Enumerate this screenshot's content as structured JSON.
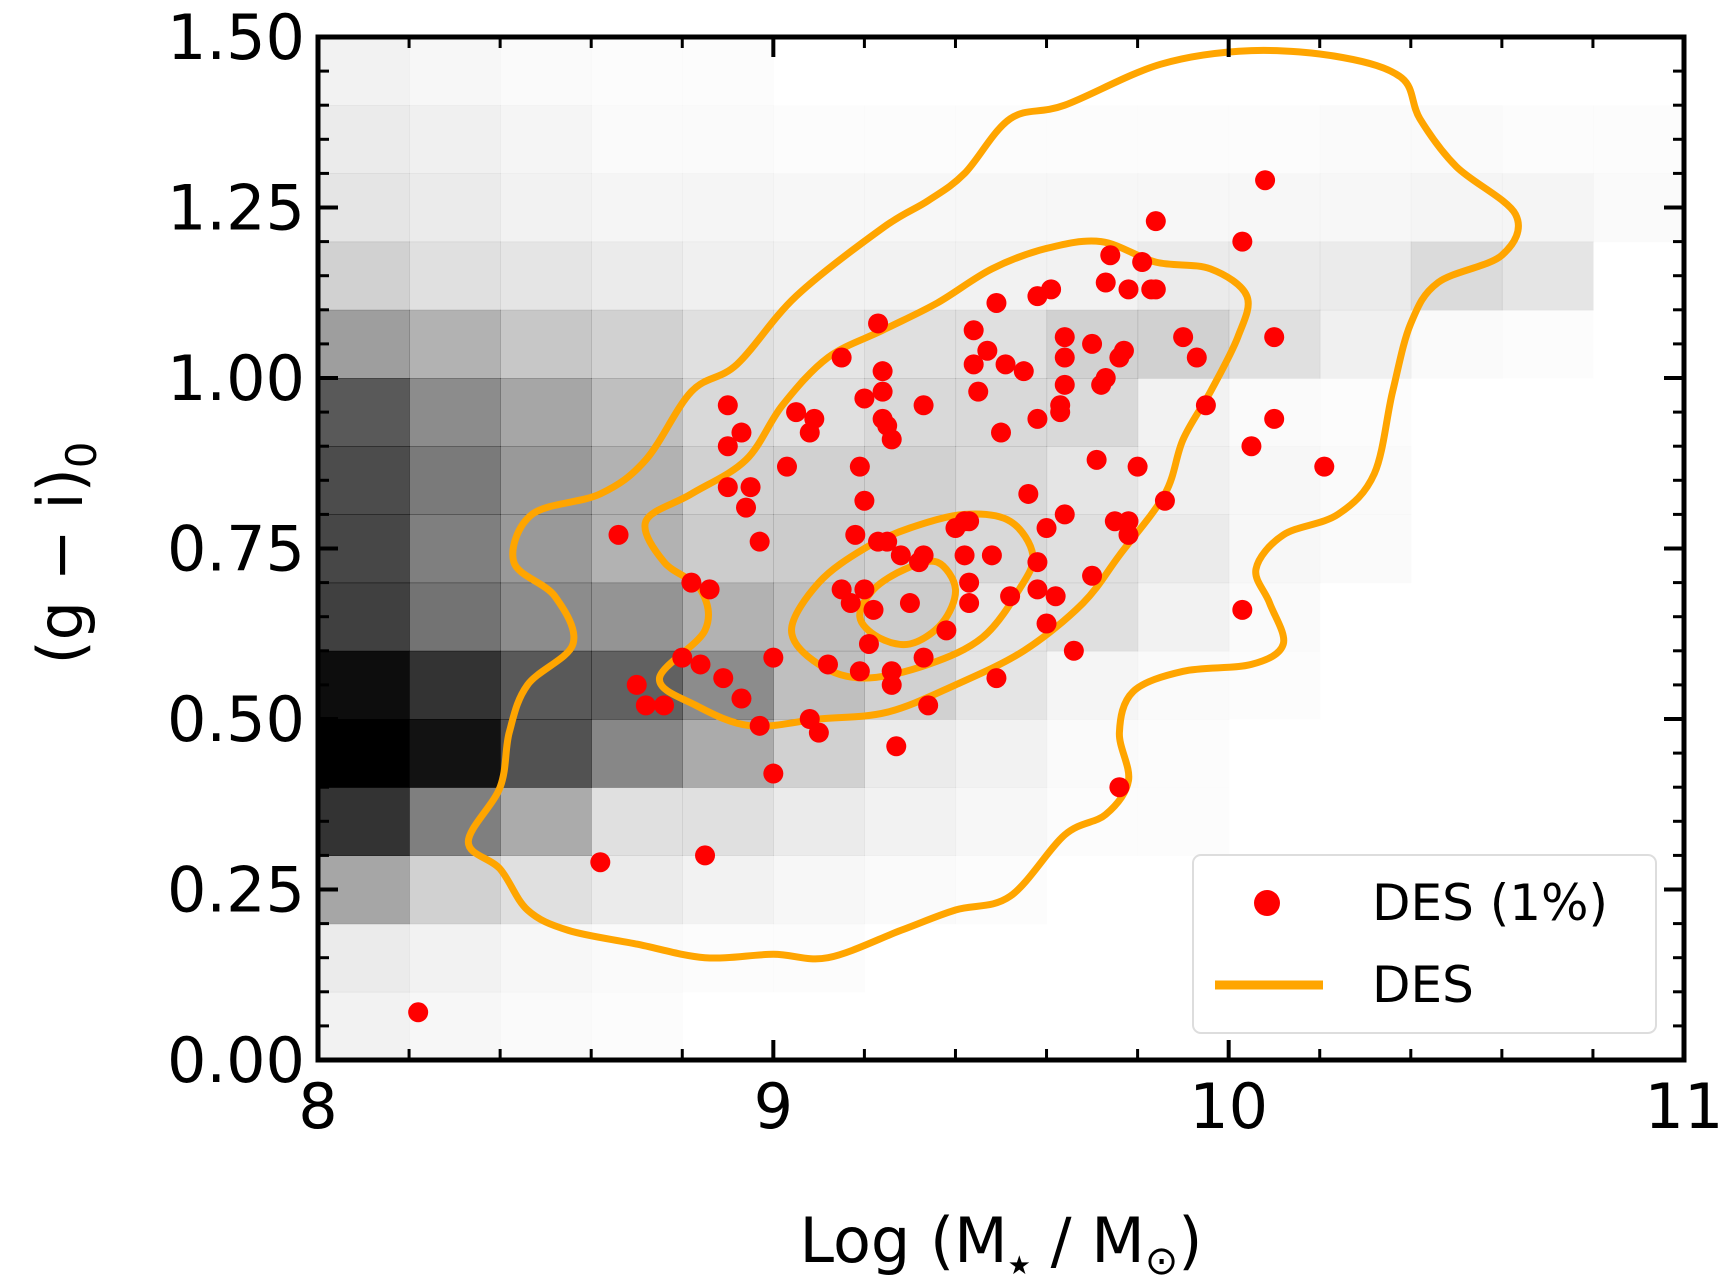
{
  "chart_data": {
    "type": "scatter",
    "xlim": [
      8,
      11
    ],
    "ylim": [
      0,
      1.5
    ],
    "x_ticks": [
      {
        "value": 8,
        "label": "8"
      },
      {
        "value": 9,
        "label": "9"
      },
      {
        "value": 10,
        "label": "10"
      },
      {
        "value": 11,
        "label": "11"
      }
    ],
    "y_ticks": [
      {
        "value": 0,
        "label": "0.00"
      },
      {
        "value": 0.25,
        "label": "0.25"
      },
      {
        "value": 0.5,
        "label": "0.50"
      },
      {
        "value": 0.75,
        "label": "0.75"
      },
      {
        "value": 1.0,
        "label": "1.00"
      },
      {
        "value": 1.25,
        "label": "1.25"
      },
      {
        "value": 1.5,
        "label": "1.50"
      }
    ],
    "xlabel_main": "Log (M",
    "xlabel_sub1": "★",
    "xlabel_mid": " / M",
    "xlabel_sub2": "⊙",
    "xlabel_end": ")",
    "ylabel_main": "(g − i)",
    "ylabel_sub": "0",
    "legend": {
      "position": "lower-right",
      "scatter_label": "DES (1%)",
      "line_label": "DES"
    },
    "colors": {
      "scatter": "#ff0000",
      "contour": "#ffa500",
      "heatmap_base": "#000000"
    },
    "heatmap": {
      "x_edges": [
        8.0,
        8.2,
        8.4,
        8.6,
        8.8,
        9.0,
        9.2,
        9.4,
        9.6,
        9.8,
        10.0,
        10.2,
        10.4,
        10.6,
        10.8,
        11.0
      ],
      "y_edges": [
        0.0,
        0.1,
        0.2,
        0.3,
        0.4,
        0.5,
        0.6,
        0.7,
        0.8,
        0.9,
        1.0,
        1.1,
        1.2,
        1.3,
        1.4,
        1.5
      ],
      "density": [
        [
          0.05,
          0.03,
          0.02,
          0.01,
          0.0,
          0.0,
          0.0,
          0.0,
          0.0,
          0.0,
          0.0,
          0.0,
          0.0,
          0.0,
          0.0
        ],
        [
          0.08,
          0.05,
          0.03,
          0.02,
          0.01,
          0.01,
          0.0,
          0.0,
          0.0,
          0.0,
          0.0,
          0.0,
          0.0,
          0.0,
          0.0
        ],
        [
          0.35,
          0.18,
          0.12,
          0.08,
          0.05,
          0.03,
          0.02,
          0.01,
          0.0,
          0.0,
          0.0,
          0.0,
          0.0,
          0.0,
          0.0
        ],
        [
          0.8,
          0.5,
          0.33,
          0.12,
          0.12,
          0.08,
          0.05,
          0.03,
          0.01,
          0.01,
          0.0,
          0.0,
          0.0,
          0.0,
          0.0
        ],
        [
          1.0,
          0.93,
          0.68,
          0.47,
          0.33,
          0.18,
          0.08,
          0.05,
          0.02,
          0.01,
          0.0,
          0.0,
          0.0,
          0.0,
          0.0
        ],
        [
          0.95,
          0.8,
          0.65,
          0.62,
          0.45,
          0.25,
          0.18,
          0.1,
          0.04,
          0.02,
          0.01,
          0.0,
          0.0,
          0.0,
          0.0
        ],
        [
          0.75,
          0.55,
          0.45,
          0.42,
          0.3,
          0.25,
          0.2,
          0.1,
          0.12,
          0.05,
          0.02,
          0.0,
          0.0,
          0.0,
          0.0
        ],
        [
          0.72,
          0.5,
          0.4,
          0.3,
          0.2,
          0.2,
          0.18,
          0.15,
          0.12,
          0.08,
          0.03,
          0.02,
          0.0,
          0.0,
          0.0
        ],
        [
          0.7,
          0.52,
          0.4,
          0.3,
          0.18,
          0.18,
          0.18,
          0.15,
          0.1,
          0.06,
          0.03,
          0.02,
          0.0,
          0.0,
          0.0
        ],
        [
          0.65,
          0.45,
          0.35,
          0.25,
          0.15,
          0.12,
          0.15,
          0.15,
          0.15,
          0.05,
          0.02,
          0.01,
          0.0,
          0.0,
          0.0
        ],
        [
          0.38,
          0.3,
          0.22,
          0.18,
          0.12,
          0.1,
          0.12,
          0.12,
          0.18,
          0.18,
          0.12,
          0.06,
          0.02,
          0.01,
          0.0
        ],
        [
          0.18,
          0.12,
          0.1,
          0.08,
          0.06,
          0.05,
          0.05,
          0.05,
          0.05,
          0.08,
          0.08,
          0.08,
          0.14,
          0.1,
          0.0
        ],
        [
          0.1,
          0.08,
          0.05,
          0.04,
          0.04,
          0.03,
          0.03,
          0.03,
          0.03,
          0.03,
          0.03,
          0.03,
          0.04,
          0.04,
          0.02
        ],
        [
          0.08,
          0.06,
          0.04,
          0.02,
          0.02,
          0.01,
          0.01,
          0.01,
          0.01,
          0.01,
          0.01,
          0.02,
          0.02,
          0.01,
          0.01
        ],
        [
          0.05,
          0.03,
          0.02,
          0.01,
          0.01,
          0.0,
          0.0,
          0.0,
          0.0,
          0.0,
          0.0,
          0.0,
          0.0,
          0.0,
          0.0
        ]
      ]
    },
    "contours": [
      [
        [
          8.4,
          0.28
        ],
        [
          8.46,
          0.22
        ],
        [
          8.55,
          0.19
        ],
        [
          8.7,
          0.17
        ],
        [
          8.85,
          0.15
        ],
        [
          9.0,
          0.155
        ],
        [
          9.12,
          0.15
        ],
        [
          9.28,
          0.19
        ],
        [
          9.4,
          0.22
        ],
        [
          9.52,
          0.24
        ],
        [
          9.64,
          0.33
        ],
        [
          9.73,
          0.36
        ],
        [
          9.78,
          0.41
        ],
        [
          9.76,
          0.48
        ],
        [
          9.79,
          0.54
        ],
        [
          9.9,
          0.57
        ],
        [
          10.05,
          0.58
        ],
        [
          10.12,
          0.61
        ],
        [
          10.09,
          0.67
        ],
        [
          10.06,
          0.72
        ],
        [
          10.12,
          0.77
        ],
        [
          10.24,
          0.8
        ],
        [
          10.32,
          0.86
        ],
        [
          10.36,
          0.98
        ],
        [
          10.4,
          1.08
        ],
        [
          10.46,
          1.14
        ],
        [
          10.6,
          1.18
        ],
        [
          10.63,
          1.24
        ],
        [
          10.5,
          1.31
        ],
        [
          10.42,
          1.38
        ],
        [
          10.38,
          1.44
        ],
        [
          10.25,
          1.47
        ],
        [
          10.05,
          1.48
        ],
        [
          9.85,
          1.46
        ],
        [
          9.64,
          1.4
        ],
        [
          9.52,
          1.38
        ],
        [
          9.42,
          1.3
        ],
        [
          9.34,
          1.26
        ],
        [
          9.24,
          1.22
        ],
        [
          9.05,
          1.12
        ],
        [
          8.92,
          1.02
        ],
        [
          8.82,
          0.98
        ],
        [
          8.72,
          0.88
        ],
        [
          8.62,
          0.83
        ],
        [
          8.47,
          0.8
        ],
        [
          8.43,
          0.73
        ],
        [
          8.52,
          0.68
        ],
        [
          8.56,
          0.61
        ],
        [
          8.46,
          0.55
        ],
        [
          8.42,
          0.48
        ],
        [
          8.4,
          0.4
        ],
        [
          8.33,
          0.32
        ],
        [
          8.4,
          0.28
        ]
      ],
      [
        [
          8.75,
          0.56
        ],
        [
          8.83,
          0.52
        ],
        [
          8.95,
          0.49
        ],
        [
          9.1,
          0.5
        ],
        [
          9.25,
          0.51
        ],
        [
          9.4,
          0.55
        ],
        [
          9.55,
          0.6
        ],
        [
          9.68,
          0.67
        ],
        [
          9.76,
          0.74
        ],
        [
          9.86,
          0.83
        ],
        [
          9.9,
          0.91
        ],
        [
          9.96,
          0.98
        ],
        [
          10.02,
          1.06
        ],
        [
          10.04,
          1.12
        ],
        [
          9.96,
          1.16
        ],
        [
          9.84,
          1.17
        ],
        [
          9.72,
          1.2
        ],
        [
          9.6,
          1.19
        ],
        [
          9.48,
          1.16
        ],
        [
          9.36,
          1.11
        ],
        [
          9.24,
          1.07
        ],
        [
          9.12,
          1.03
        ],
        [
          9.02,
          0.96
        ],
        [
          8.94,
          0.88
        ],
        [
          8.82,
          0.83
        ],
        [
          8.72,
          0.79
        ],
        [
          8.76,
          0.73
        ],
        [
          8.84,
          0.69
        ],
        [
          8.85,
          0.63
        ],
        [
          8.75,
          0.56
        ]
      ],
      [
        [
          9.04,
          0.63
        ],
        [
          9.1,
          0.58
        ],
        [
          9.2,
          0.56
        ],
        [
          9.34,
          0.58
        ],
        [
          9.46,
          0.62
        ],
        [
          9.54,
          0.69
        ],
        [
          9.57,
          0.74
        ],
        [
          9.52,
          0.79
        ],
        [
          9.42,
          0.8
        ],
        [
          9.3,
          0.78
        ],
        [
          9.2,
          0.75
        ],
        [
          9.1,
          0.7
        ],
        [
          9.04,
          0.63
        ]
      ],
      [
        [
          9.19,
          0.65
        ],
        [
          9.23,
          0.62
        ],
        [
          9.3,
          0.61
        ],
        [
          9.37,
          0.64
        ],
        [
          9.4,
          0.69
        ],
        [
          9.36,
          0.73
        ],
        [
          9.29,
          0.72
        ],
        [
          9.22,
          0.69
        ],
        [
          9.19,
          0.65
        ]
      ]
    ],
    "points": [
      [
        8.22,
        0.07
      ],
      [
        8.62,
        0.29
      ],
      [
        8.85,
        0.3
      ],
      [
        8.66,
        0.77
      ],
      [
        8.7,
        0.55
      ],
      [
        8.72,
        0.52
      ],
      [
        8.76,
        0.52
      ],
      [
        8.8,
        0.59
      ],
      [
        8.82,
        0.7
      ],
      [
        8.84,
        0.58
      ],
      [
        8.86,
        0.69
      ],
      [
        8.89,
        0.56
      ],
      [
        8.9,
        0.84
      ],
      [
        8.9,
        0.9
      ],
      [
        8.93,
        0.92
      ],
      [
        8.9,
        0.96
      ],
      [
        8.93,
        0.53
      ],
      [
        8.94,
        0.81
      ],
      [
        8.95,
        0.84
      ],
      [
        8.97,
        0.76
      ],
      [
        8.97,
        0.49
      ],
      [
        9.0,
        0.42
      ],
      [
        9.0,
        0.59
      ],
      [
        9.03,
        0.87
      ],
      [
        9.05,
        0.95
      ],
      [
        9.08,
        0.92
      ],
      [
        9.09,
        0.94
      ],
      [
        9.08,
        0.5
      ],
      [
        9.1,
        0.48
      ],
      [
        9.12,
        0.58
      ],
      [
        9.15,
        1.03
      ],
      [
        9.15,
        0.69
      ],
      [
        9.17,
        0.67
      ],
      [
        9.18,
        0.77
      ],
      [
        9.19,
        0.87
      ],
      [
        9.19,
        0.57
      ],
      [
        9.2,
        0.97
      ],
      [
        9.2,
        0.82
      ],
      [
        9.2,
        0.69
      ],
      [
        9.21,
        0.61
      ],
      [
        9.22,
        0.66
      ],
      [
        9.23,
        1.08
      ],
      [
        9.24,
        1.01
      ],
      [
        9.24,
        0.98
      ],
      [
        9.24,
        0.94
      ],
      [
        9.25,
        0.93
      ],
      [
        9.26,
        0.91
      ],
      [
        9.25,
        0.76
      ],
      [
        9.26,
        0.57
      ],
      [
        9.26,
        0.55
      ],
      [
        9.27,
        0.46
      ],
      [
        9.23,
        0.76
      ],
      [
        9.28,
        0.74
      ],
      [
        9.3,
        0.67
      ],
      [
        9.32,
        0.73
      ],
      [
        9.33,
        0.74
      ],
      [
        9.33,
        0.59
      ],
      [
        9.33,
        0.96
      ],
      [
        9.34,
        0.52
      ],
      [
        9.38,
        0.63
      ],
      [
        9.4,
        0.78
      ],
      [
        9.42,
        0.79
      ],
      [
        9.42,
        0.74
      ],
      [
        9.43,
        0.79
      ],
      [
        9.43,
        0.7
      ],
      [
        9.43,
        0.67
      ],
      [
        9.44,
        1.07
      ],
      [
        9.44,
        1.02
      ],
      [
        9.45,
        0.98
      ],
      [
        9.47,
        1.04
      ],
      [
        9.48,
        0.74
      ],
      [
        9.49,
        1.11
      ],
      [
        9.5,
        0.92
      ],
      [
        9.49,
        0.56
      ],
      [
        9.51,
        1.02
      ],
      [
        9.52,
        0.68
      ],
      [
        9.55,
        1.01
      ],
      [
        9.56,
        0.83
      ],
      [
        9.58,
        0.94
      ],
      [
        9.58,
        0.73
      ],
      [
        9.58,
        0.69
      ],
      [
        9.58,
        1.12
      ],
      [
        9.6,
        0.78
      ],
      [
        9.6,
        0.64
      ],
      [
        9.61,
        1.13
      ],
      [
        9.62,
        0.68
      ],
      [
        9.63,
        0.96
      ],
      [
        9.63,
        0.95
      ],
      [
        9.64,
        1.03
      ],
      [
        9.64,
        0.99
      ],
      [
        9.64,
        0.8
      ],
      [
        9.64,
        1.06
      ],
      [
        9.66,
        0.6
      ],
      [
        9.7,
        1.05
      ],
      [
        9.7,
        0.71
      ],
      [
        9.71,
        0.88
      ],
      [
        9.72,
        0.99
      ],
      [
        9.73,
        1.0
      ],
      [
        9.73,
        1.14
      ],
      [
        9.74,
        1.18
      ],
      [
        9.75,
        0.79
      ],
      [
        9.76,
        1.03
      ],
      [
        9.77,
        1.04
      ],
      [
        9.78,
        0.79
      ],
      [
        9.78,
        1.13
      ],
      [
        9.8,
        0.87
      ],
      [
        9.81,
        1.17
      ],
      [
        9.83,
        1.13
      ],
      [
        9.84,
        1.23
      ],
      [
        9.84,
        1.13
      ],
      [
        9.86,
        0.82
      ],
      [
        9.78,
        0.77
      ],
      [
        9.76,
        0.4
      ],
      [
        9.9,
        1.06
      ],
      [
        9.93,
        1.03
      ],
      [
        9.95,
        0.96
      ],
      [
        10.03,
        0.66
      ],
      [
        10.03,
        1.2
      ],
      [
        10.05,
        0.9
      ],
      [
        10.08,
        1.29
      ],
      [
        10.1,
        0.94
      ],
      [
        10.1,
        1.06
      ],
      [
        10.21,
        0.87
      ]
    ]
  }
}
